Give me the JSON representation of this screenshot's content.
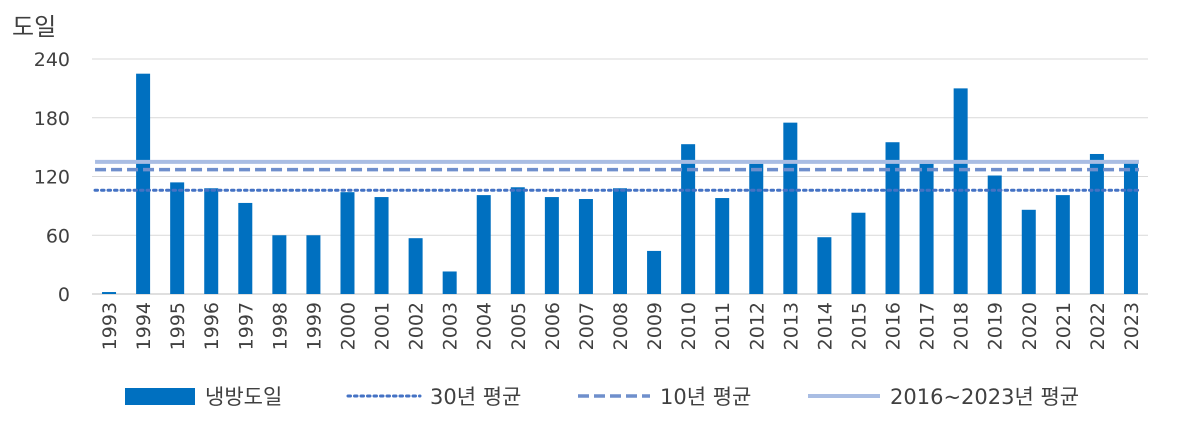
{
  "chart_data": {
    "type": "bar",
    "y_unit_label": "도일",
    "categories": [
      "1993",
      "1994",
      "1995",
      "1996",
      "1997",
      "1998",
      "1999",
      "2000",
      "2001",
      "2002",
      "2003",
      "2004",
      "2005",
      "2006",
      "2007",
      "2008",
      "2009",
      "2010",
      "2011",
      "2012",
      "2013",
      "2014",
      "2015",
      "2016",
      "2017",
      "2018",
      "2019",
      "2020",
      "2021",
      "2022",
      "2023"
    ],
    "series": [
      {
        "name": "냉방도일",
        "color": "#0070c0",
        "values": [
          2,
          225,
          114,
          108,
          93,
          60,
          60,
          104,
          99,
          57,
          23,
          101,
          109,
          99,
          97,
          108,
          44,
          153,
          98,
          133,
          175,
          58,
          83,
          155,
          133,
          210,
          121,
          86,
          101,
          143,
          134
        ]
      }
    ],
    "reference_lines": [
      {
        "name": "30년 평균",
        "value": 106,
        "style": "dotted",
        "color": "#4472c4"
      },
      {
        "name": "10년 평균",
        "value": 127,
        "style": "dashed",
        "color": "#6f8fcc"
      },
      {
        "name": "2016~2023년 평균",
        "value": 135,
        "style": "solid",
        "color": "#a9bde3"
      }
    ],
    "ylim": [
      0,
      240
    ],
    "yticks": [
      "0",
      "60",
      "120",
      "180",
      "240"
    ],
    "grid": true,
    "legend_position": "bottom"
  }
}
